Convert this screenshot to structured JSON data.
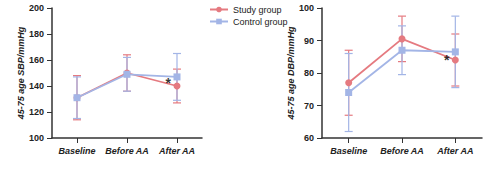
{
  "chart_data": [
    {
      "type": "line",
      "y_label": "45-75 age SBP/mmHg",
      "categories": [
        "Baseline",
        "Before AA",
        "After AA"
      ],
      "ylim": [
        100,
        200
      ],
      "yticks": [
        100,
        120,
        140,
        160,
        180,
        200
      ],
      "legend": "top-right",
      "series": [
        {
          "name": "Study group",
          "color": "#e57a80",
          "marker": "circle",
          "values": [
            131,
            150,
            140
          ],
          "errors": [
            17,
            14,
            13
          ]
        },
        {
          "name": "Control group",
          "color": "#a3b5e6",
          "marker": "square",
          "values": [
            131,
            149,
            147
          ],
          "errors": [
            16,
            13,
            18
          ]
        }
      ],
      "annotations": [
        {
          "text": "*",
          "x": "After AA",
          "y": 142
        }
      ]
    },
    {
      "type": "line",
      "y_label": "45-75 age DBP/mmHg",
      "categories": [
        "Baseline",
        "Before AA",
        "After AA"
      ],
      "ylim": [
        60,
        100
      ],
      "yticks": [
        60,
        70,
        80,
        90,
        100
      ],
      "series": [
        {
          "name": "Study group",
          "color": "#e57a80",
          "marker": "circle",
          "values": [
            77,
            90.5,
            84
          ],
          "errors": [
            10,
            7,
            8
          ]
        },
        {
          "name": "Control group",
          "color": "#a3b5e6",
          "marker": "square",
          "values": [
            74,
            87,
            86.5
          ],
          "errors": [
            12,
            7.5,
            11
          ]
        }
      ],
      "annotations": [
        {
          "text": "*",
          "x": "After AA",
          "y": 84
        }
      ]
    }
  ]
}
